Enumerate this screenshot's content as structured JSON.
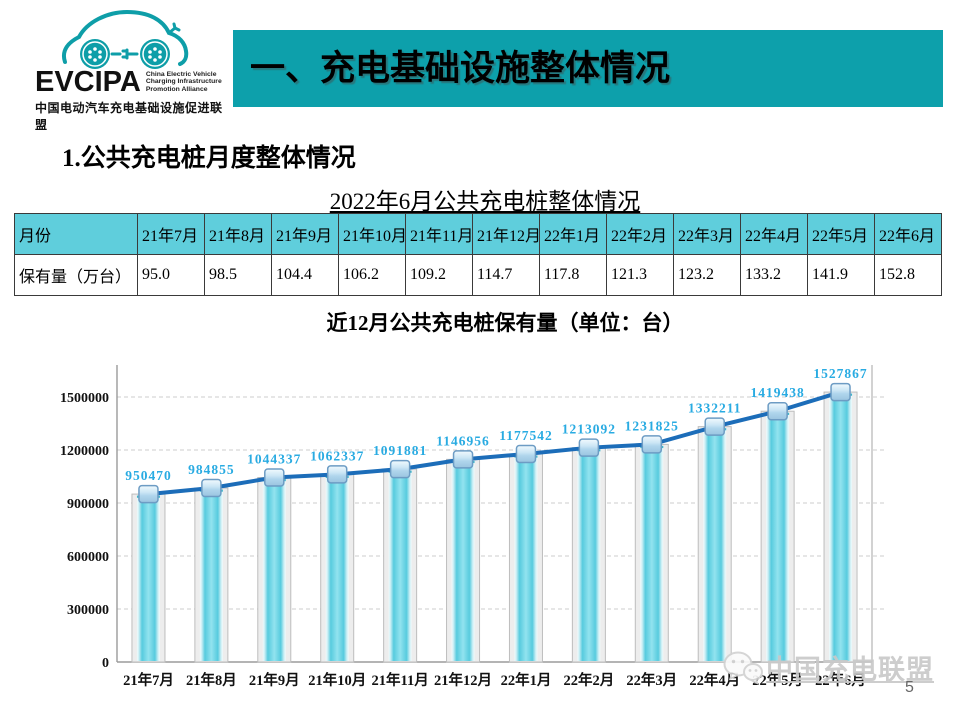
{
  "slide": {
    "page_number": "5",
    "logo": {
      "acronym": "EVCIPA",
      "english_lines": [
        "China Electric Vehicle",
        "Charging Infrastructure",
        "Promotion Alliance"
      ],
      "chinese_name": "中国电动汽车充电基础设施促进联盟",
      "brand_color": "#0E9EA8"
    },
    "banner": {
      "title": "一、充电基础设施整体情况",
      "bg_color": "#0DA0AB"
    },
    "section_heading": "1.公共充电桩月度整体情况",
    "table_title": "2022年6月公共充电桩整体情况",
    "chart_title": "近12月公共充电桩保有量（单位：台）",
    "watermark": {
      "icon": "wechat-icon",
      "text": "中国充电联盟"
    }
  },
  "table": {
    "corner_header": "月份",
    "row_label": "保有量（万台）",
    "months": [
      "21年7月",
      "21年8月",
      "21年9月",
      "21年10月",
      "21年11月",
      "21年12月",
      "22年1月",
      "22年2月",
      "22年3月",
      "22年4月",
      "22年5月",
      "22年6月"
    ],
    "values": [
      "95.0",
      "98.5",
      "104.4",
      "106.2",
      "109.2",
      "114.7",
      "117.8",
      "121.3",
      "123.2",
      "133.2",
      "141.9",
      "152.8"
    ],
    "header_bg": "#5FCEDC"
  },
  "chart_data": {
    "type": "bar",
    "overlay": "line",
    "title": "近12月公共充电桩保有量（单位：台）",
    "categories": [
      "21年7月",
      "21年8月",
      "21年9月",
      "21年10月",
      "21年11月",
      "21年12月",
      "22年1月",
      "22年2月",
      "22年3月",
      "22年4月",
      "22年5月",
      "22年6月"
    ],
    "values": [
      950470,
      984855,
      1044337,
      1062337,
      1091881,
      1146956,
      1177542,
      1213092,
      1231825,
      1332211,
      1419438,
      1527867
    ],
    "xlabel": "",
    "ylabel": "",
    "ylim": [
      0,
      1500000
    ],
    "ytick_interval": 300000,
    "yticks": [
      0,
      300000,
      600000,
      900000,
      1200000,
      1500000
    ],
    "grid": true,
    "legend": "none",
    "bar_color": "#67D3E1",
    "line_color": "#1C6DB9",
    "data_label_color": "#29ABE2"
  }
}
